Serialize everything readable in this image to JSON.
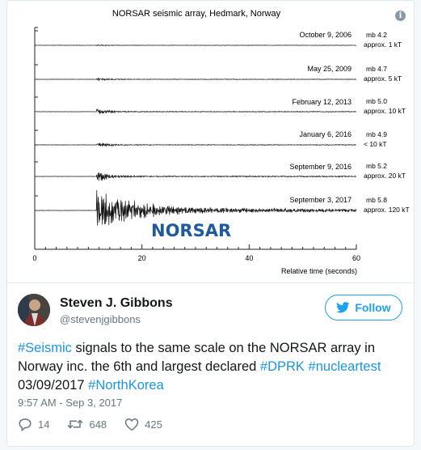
{
  "media": {
    "title": "NORSAR seismic array, Hedmark, Norway",
    "logo": "NORSAR",
    "info_icon": "info-icon",
    "xlabel": "Relative time (seconds)",
    "ticks": [
      "0",
      "20",
      "40",
      "60"
    ],
    "events": [
      {
        "date": "October 9, 2006",
        "mb": "mb 4.2",
        "yield": "approx. 1 kT",
        "amp": 0.6
      },
      {
        "date": "May 25, 2009",
        "mb": "mb 4.7",
        "yield": "approx. 5 kT",
        "amp": 1.8
      },
      {
        "date": "February 12, 2013",
        "mb": "mb 5.0",
        "yield": "approx. 10 kT",
        "amp": 3.5
      },
      {
        "date": "January 6, 2016",
        "mb": "mb 4.9",
        "yield": "< 10 kT",
        "amp": 3.0
      },
      {
        "date": "September 9, 2016",
        "mb": "mb 5.2",
        "yield": "approx. 20 kT",
        "amp": 7.0
      },
      {
        "date": "September 3, 2017",
        "mb": "mb 5.8",
        "yield": "approx. 120 kT",
        "amp": 24.0
      }
    ]
  },
  "author": {
    "name": "Steven J. Gibbons",
    "handle": "@stevenjgibbons"
  },
  "follow": {
    "label": "Follow",
    "icon": "twitter-bird-icon"
  },
  "tweet": {
    "parts": [
      {
        "text": "#Seismic",
        "link": true
      },
      {
        "text": " signals to the same scale on the NORSAR array in Norway inc. the 6th and largest declared ",
        "link": false
      },
      {
        "text": "#DPRK",
        "link": true
      },
      {
        "text": " ",
        "link": false
      },
      {
        "text": "#nucleartest",
        "link": true
      },
      {
        "text": " 03/09/2017 ",
        "link": false
      },
      {
        "text": "#NorthKorea",
        "link": true
      }
    ],
    "timestamp": "9:57 AM - Sep 3, 2017"
  },
  "actions": {
    "replies": "14",
    "retweets": "648",
    "likes": "425"
  },
  "colors": {
    "link": "#1b95e0",
    "follow": "#1da1f2",
    "logo": "#1f5a9e"
  }
}
